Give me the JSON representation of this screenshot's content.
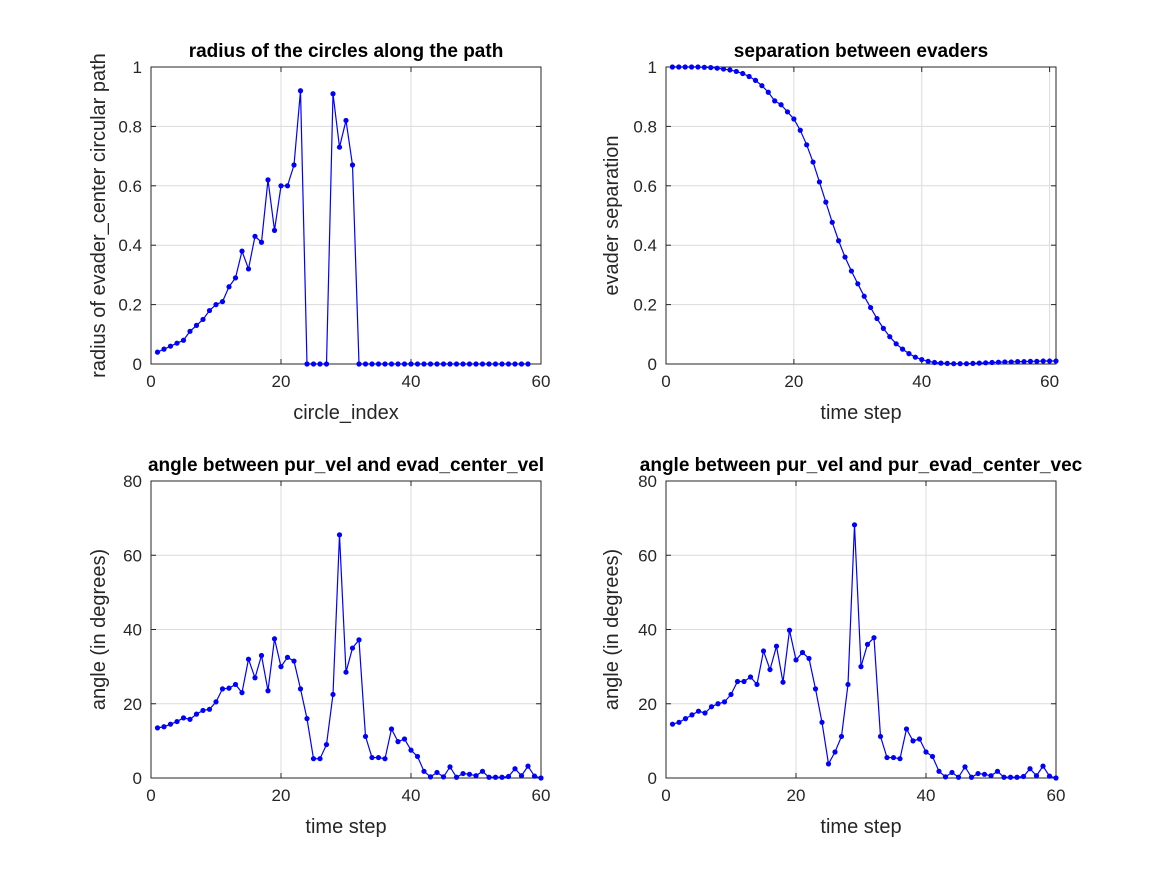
{
  "figure": {
    "background": "#ffffff",
    "series_color": "#0000ff"
  },
  "chart_data": [
    {
      "type": "line",
      "title": "radius of the circles along the path",
      "xlabel": "circle_index",
      "ylabel": "radius of evader_center circular path",
      "xlim": [
        0,
        60
      ],
      "ylim": [
        0,
        1
      ],
      "xticks": [
        "0",
        "20",
        "40",
        "60"
      ],
      "yticks": [
        "0",
        "0.2",
        "0.4",
        "0.6",
        "0.8",
        "1"
      ],
      "grid": true,
      "marker": "dot",
      "x": [
        1,
        2,
        3,
        4,
        5,
        6,
        7,
        8,
        9,
        10,
        11,
        12,
        13,
        14,
        15,
        16,
        17,
        18,
        19,
        20,
        21,
        22,
        23,
        24,
        25,
        26,
        27,
        28,
        29,
        30,
        31,
        32,
        33,
        34,
        35,
        36,
        37,
        38,
        39,
        40,
        41,
        42,
        43,
        44,
        45,
        46,
        47,
        48,
        49,
        50,
        51,
        52,
        53,
        54,
        55,
        56,
        57,
        58
      ],
      "values": [
        0.04,
        0.05,
        0.06,
        0.07,
        0.08,
        0.11,
        0.13,
        0.15,
        0.18,
        0.2,
        0.21,
        0.26,
        0.29,
        0.38,
        0.32,
        0.43,
        0.41,
        0.62,
        0.45,
        0.6,
        0.6,
        0.67,
        0.92,
        0,
        0,
        0,
        0,
        0.91,
        0.73,
        0.82,
        0.67,
        0,
        0,
        0,
        0,
        0,
        0,
        0,
        0,
        0,
        0,
        0,
        0,
        0,
        0,
        0,
        0,
        0,
        0,
        0,
        0,
        0,
        0,
        0,
        0,
        0,
        0,
        0
      ]
    },
    {
      "type": "line",
      "title": "separation between evaders",
      "xlabel": "time step",
      "ylabel": "evader separation",
      "xlim": [
        0,
        61
      ],
      "ylim": [
        0,
        1
      ],
      "xticks": [
        "0",
        "20",
        "40",
        "60"
      ],
      "yticks": [
        "0",
        "0.2",
        "0.4",
        "0.6",
        "0.8",
        "1"
      ],
      "grid": true,
      "marker": "dot",
      "x": [
        1,
        2,
        3,
        4,
        5,
        6,
        7,
        8,
        9,
        10,
        11,
        12,
        13,
        14,
        15,
        16,
        17,
        18,
        19,
        20,
        21,
        22,
        23,
        24,
        25,
        26,
        27,
        28,
        29,
        30,
        31,
        32,
        33,
        34,
        35,
        36,
        37,
        38,
        39,
        40,
        41,
        42,
        43,
        44,
        45,
        46,
        47,
        48,
        49,
        50,
        51,
        52,
        53,
        54,
        55,
        56,
        57,
        58,
        59,
        60,
        61
      ],
      "values": [
        1,
        1,
        1,
        1,
        1,
        0.999,
        0.998,
        0.996,
        0.993,
        0.99,
        0.985,
        0.978,
        0.968,
        0.955,
        0.937,
        0.915,
        0.886,
        0.873,
        0.849,
        0.825,
        0.787,
        0.738,
        0.68,
        0.613,
        0.545,
        0.477,
        0.415,
        0.36,
        0.313,
        0.27,
        0.228,
        0.19,
        0.153,
        0.12,
        0.092,
        0.068,
        0.05,
        0.035,
        0.023,
        0.015,
        0.009,
        0.005,
        0.003,
        0.002,
        0.001,
        0.001,
        0.001,
        0.002,
        0.003,
        0.004,
        0.005,
        0.006,
        0.007,
        0.007,
        0.008,
        0.008,
        0.009,
        0.009,
        0.01,
        0.01,
        0.01
      ]
    },
    {
      "type": "line",
      "title": "angle between pur_vel and evad_center_vel",
      "xlabel": "time step",
      "ylabel": "angle (in degrees)",
      "xlim": [
        0,
        60
      ],
      "ylim": [
        0,
        80
      ],
      "xticks": [
        "0",
        "20",
        "40",
        "60"
      ],
      "yticks": [
        "0",
        "20",
        "40",
        "60",
        "80"
      ],
      "grid": true,
      "marker": "dot",
      "x": [
        1,
        2,
        3,
        4,
        5,
        6,
        7,
        8,
        9,
        10,
        11,
        12,
        13,
        14,
        15,
        16,
        17,
        18,
        19,
        20,
        21,
        22,
        23,
        24,
        25,
        26,
        27,
        28,
        29,
        30,
        31,
        32,
        33,
        34,
        35,
        36,
        37,
        38,
        39,
        40,
        41,
        42,
        43,
        44,
        45,
        46,
        47,
        48,
        49,
        50,
        51,
        52,
        53,
        54,
        55,
        56,
        57,
        58,
        59,
        60
      ],
      "values": [
        13.5,
        13.8,
        14.5,
        15.2,
        16.2,
        15.8,
        17.2,
        18.2,
        18.5,
        20.5,
        24,
        24.2,
        25.2,
        23,
        32,
        27,
        33,
        23.5,
        37.5,
        30,
        32.5,
        31.5,
        24,
        16,
        5.2,
        5.2,
        9,
        22.5,
        65.5,
        28.5,
        35,
        37.2,
        11.2,
        5.5,
        5.5,
        5.2,
        13.2,
        9.8,
        10.5,
        7.5,
        5.8,
        1.8,
        0.3,
        1.5,
        0.3,
        3,
        0.2,
        1.2,
        1,
        0.6,
        1.8,
        0.2,
        0.2,
        0.2,
        0.4,
        2.5,
        0.6,
        3.2,
        0.5,
        0
      ]
    },
    {
      "type": "line",
      "title": "angle between pur_vel and pur_evad_center_vec",
      "xlabel": "time step",
      "ylabel": "angle (in degrees)",
      "xlim": [
        0,
        60
      ],
      "ylim": [
        0,
        80
      ],
      "xticks": [
        "0",
        "20",
        "40",
        "60"
      ],
      "yticks": [
        "0",
        "20",
        "40",
        "60",
        "80"
      ],
      "grid": true,
      "marker": "dot",
      "x": [
        1,
        2,
        3,
        4,
        5,
        6,
        7,
        8,
        9,
        10,
        11,
        12,
        13,
        14,
        15,
        16,
        17,
        18,
        19,
        20,
        21,
        22,
        23,
        24,
        25,
        26,
        27,
        28,
        29,
        30,
        31,
        32,
        33,
        34,
        35,
        36,
        37,
        38,
        39,
        40,
        41,
        42,
        43,
        44,
        45,
        46,
        47,
        48,
        49,
        50,
        51,
        52,
        53,
        54,
        55,
        56,
        57,
        58,
        59,
        60
      ],
      "values": [
        14.5,
        15,
        16,
        17,
        18,
        17.5,
        19.2,
        20,
        20.5,
        22.5,
        26,
        26,
        27.2,
        25.2,
        34.2,
        29.2,
        35.5,
        25.8,
        39.8,
        31.8,
        33.8,
        32.2,
        24,
        15,
        3.8,
        7,
        11.2,
        25.2,
        68.2,
        30,
        36,
        37.8,
        11.2,
        5.5,
        5.5,
        5.2,
        13.2,
        10,
        10.5,
        7,
        5.8,
        1.8,
        0.3,
        1.5,
        0.2,
        3,
        0.2,
        1.2,
        1,
        0.6,
        1.8,
        0.2,
        0.2,
        0.2,
        0.4,
        2.5,
        0.6,
        3.2,
        0.5,
        0
      ]
    }
  ]
}
